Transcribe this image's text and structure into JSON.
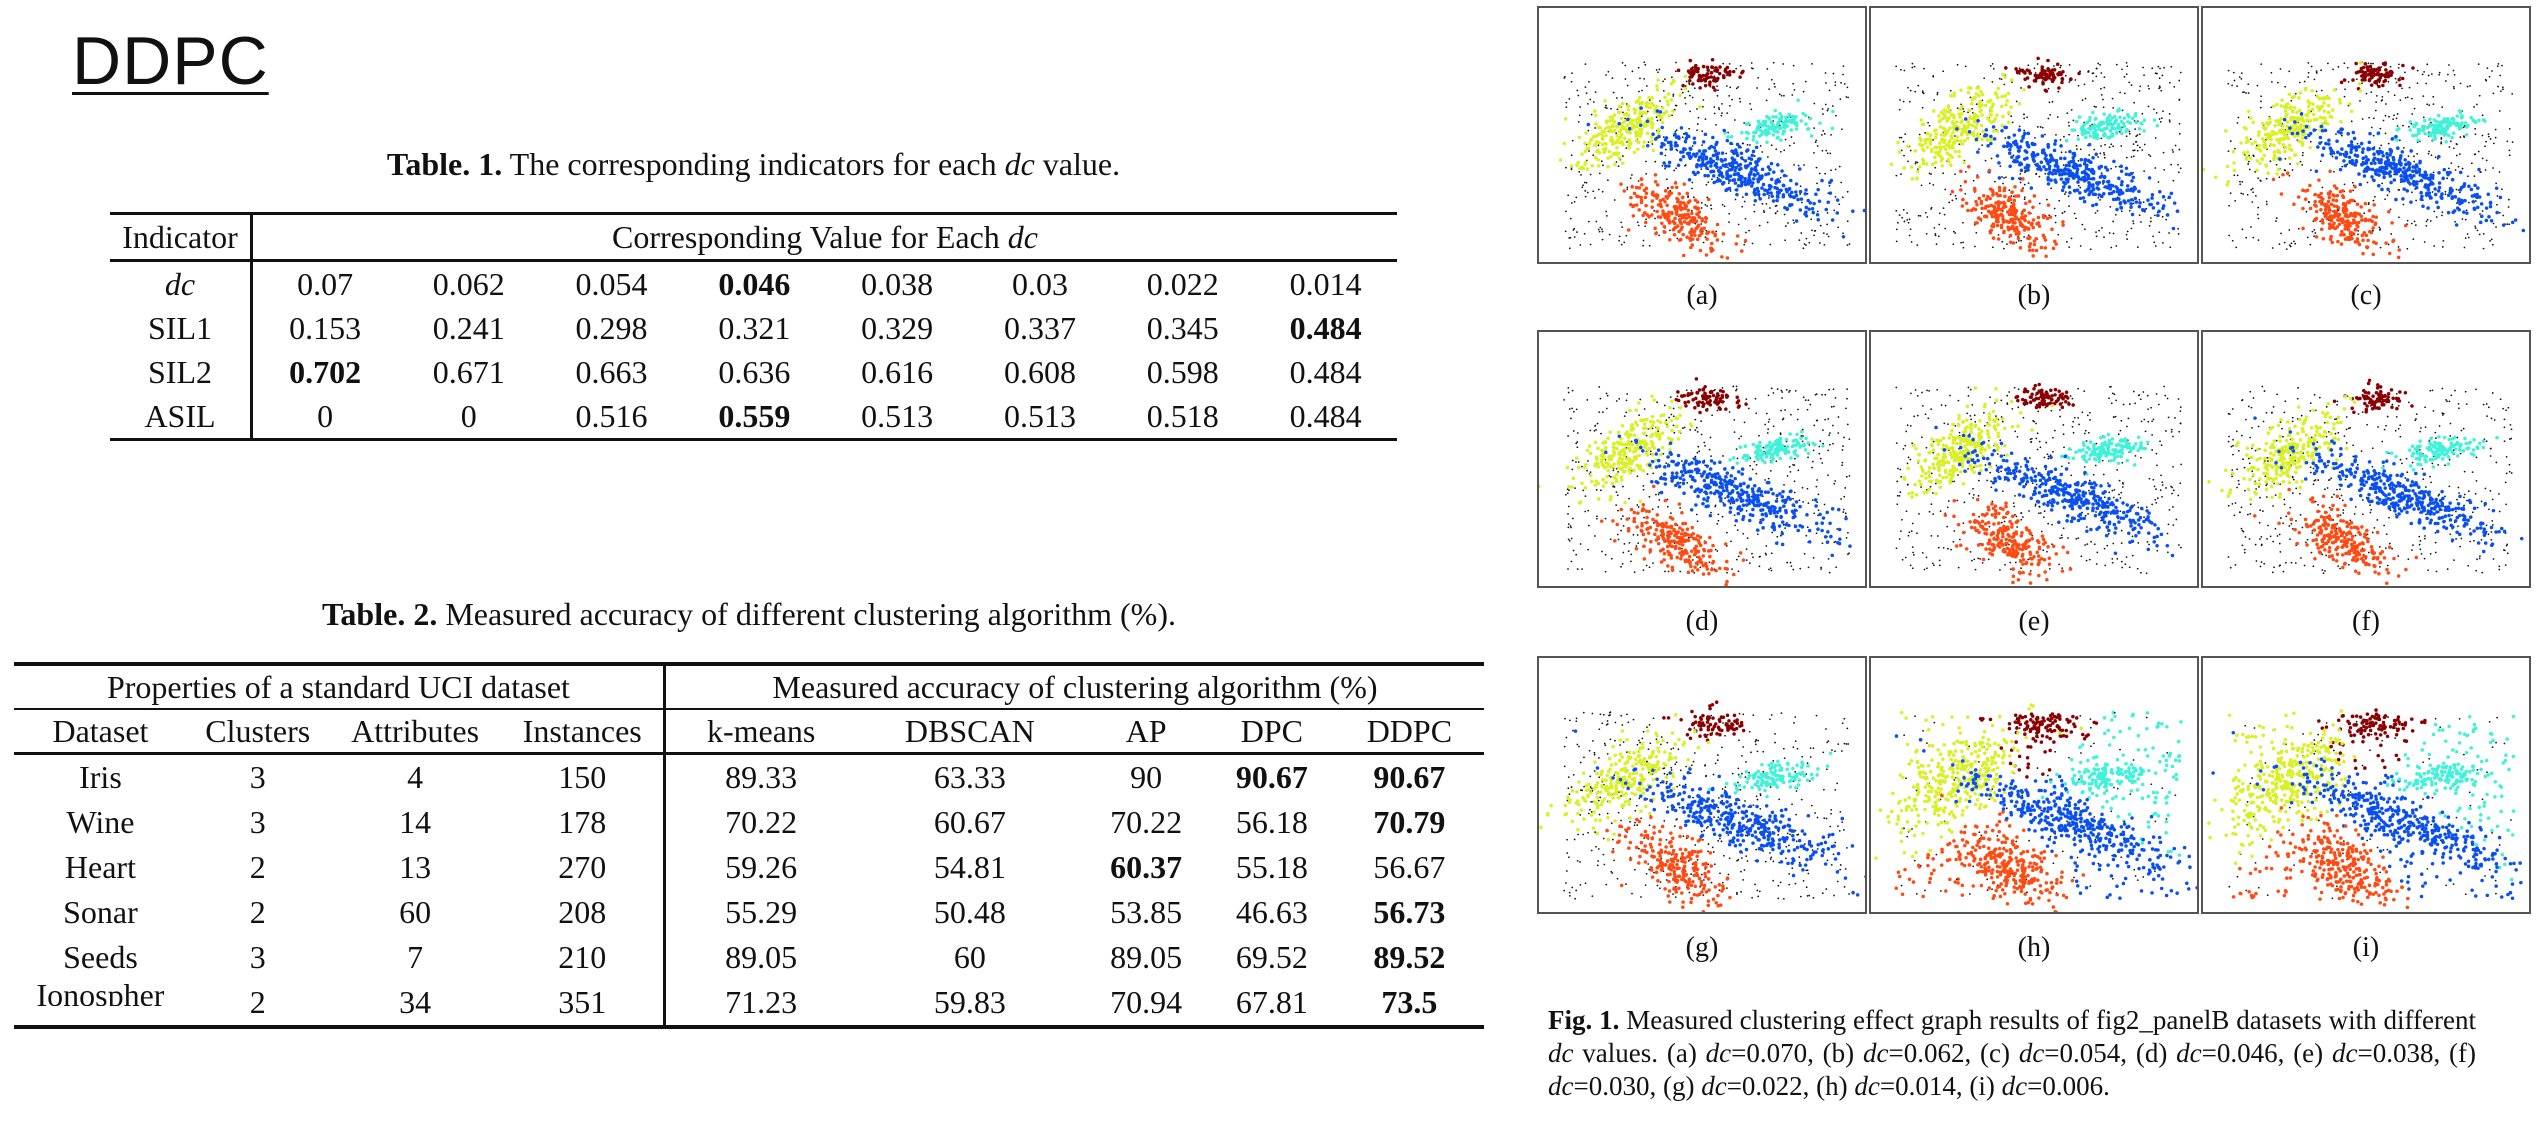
{
  "doc_title": "DDPC",
  "table1": {
    "caption_label": "Table. 1.",
    "caption_text": " The corresponding indicators for each ",
    "caption_var": "dc",
    "caption_end": " value.",
    "header_left": "Indicator",
    "header_span": "Corresponding Value for Each ",
    "header_span_var": "dc",
    "rows": [
      {
        "name": "dc",
        "italic": true,
        "values": [
          "0.07",
          "0.062",
          "0.054",
          "0.046",
          "0.038",
          "0.03",
          "0.022",
          "0.014"
        ],
        "bold": [
          3
        ]
      },
      {
        "name": "SIL1",
        "values": [
          "0.153",
          "0.241",
          "0.298",
          "0.321",
          "0.329",
          "0.337",
          "0.345",
          "0.484"
        ],
        "bold": [
          7
        ]
      },
      {
        "name": "SIL2",
        "values": [
          "0.702",
          "0.671",
          "0.663",
          "0.636",
          "0.616",
          "0.608",
          "0.598",
          "0.484"
        ],
        "bold": [
          0
        ]
      },
      {
        "name": "ASIL",
        "values": [
          "0",
          "0",
          "0.516",
          "0.559",
          "0.513",
          "0.513",
          "0.518",
          "0.484"
        ],
        "bold": [
          3
        ]
      }
    ]
  },
  "table2": {
    "caption_label": "Table. 2.",
    "caption_text": " Measured accuracy of different clustering algorithm (%).",
    "group_left": "Properties of a standard UCI dataset",
    "group_right": "Measured accuracy of clustering algorithm (%)",
    "columns": [
      "Dataset",
      "Clusters",
      "Attributes",
      "Instances",
      "k-means",
      "DBSCAN",
      "AP",
      "DPC",
      "DDPC"
    ],
    "rows": [
      {
        "values": [
          "Iris",
          "3",
          "4",
          "150",
          "89.33",
          "63.33",
          "90",
          "90.67",
          "90.67"
        ],
        "bold": [
          7,
          8
        ]
      },
      {
        "values": [
          "Wine",
          "3",
          "14",
          "178",
          "70.22",
          "60.67",
          "70.22",
          "56.18",
          "70.79"
        ],
        "bold": [
          8
        ]
      },
      {
        "values": [
          "Heart",
          "2",
          "13",
          "270",
          "59.26",
          "54.81",
          "60.37",
          "55.18",
          "56.67"
        ],
        "bold": [
          6
        ]
      },
      {
        "values": [
          "Sonar",
          "2",
          "60",
          "208",
          "55.29",
          "50.48",
          "53.85",
          "46.63",
          "56.73"
        ],
        "bold": [
          8
        ]
      },
      {
        "values": [
          "Seeds",
          "3",
          "7",
          "210",
          "89.05",
          "60",
          "89.05",
          "69.52",
          "89.52"
        ],
        "bold": [
          8
        ]
      },
      {
        "values": [
          "Ionospher",
          "2",
          "34",
          "351",
          "71.23",
          "59.83",
          "70.94",
          "67.81",
          "73.5"
        ],
        "bold": [
          8
        ],
        "clipped_first": true
      }
    ]
  },
  "figure": {
    "panel_labels": [
      "(a)",
      "(b)",
      "(c)",
      "(d)",
      "(e)",
      "(f)",
      "(g)",
      "(h)",
      "(i)"
    ],
    "caption_label": "Fig. 1.",
    "caption_parts": [
      {
        "t": " Measured clustering effect graph results of fig2_panelB datasets with different "
      },
      {
        "t": "dc",
        "i": true
      },
      {
        "t": " values. (a) "
      },
      {
        "t": "dc",
        "i": true
      },
      {
        "t": "=0.070, (b) "
      },
      {
        "t": "dc",
        "i": true
      },
      {
        "t": "=0.062, (c) "
      },
      {
        "t": "dc",
        "i": true
      },
      {
        "t": "=0.054, (d) "
      },
      {
        "t": "dc",
        "i": true
      },
      {
        "t": "=0.046, (e) "
      },
      {
        "t": "dc",
        "i": true
      },
      {
        "t": "=0.038, (f) "
      },
      {
        "t": "dc",
        "i": true
      },
      {
        "t": "=0.030, (g) "
      },
      {
        "t": "dc",
        "i": true
      },
      {
        "t": "=0.022, (h) "
      },
      {
        "t": "dc",
        "i": true
      },
      {
        "t": "=0.014, (i) "
      },
      {
        "t": "dc",
        "i": true
      },
      {
        "t": "=0.006."
      }
    ],
    "colors": {
      "dark_red": "#8b0000",
      "yellow": "#d9f025",
      "cyan": "#3ff2d8",
      "blue": "#0a4ff0",
      "orange": "#ff4a12",
      "noise": "#111111"
    }
  }
}
